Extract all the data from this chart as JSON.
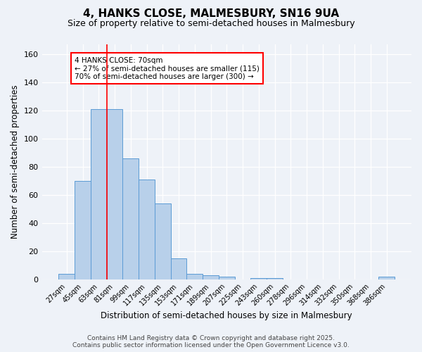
{
  "title": "4, HANKS CLOSE, MALMESBURY, SN16 9UA",
  "subtitle": "Size of property relative to semi-detached houses in Malmesbury",
  "xlabel": "Distribution of semi-detached houses by size in Malmesbury",
  "ylabel": "Number of semi-detached properties",
  "bin_labels": [
    "27sqm",
    "45sqm",
    "63sqm",
    "81sqm",
    "99sqm",
    "117sqm",
    "135sqm",
    "153sqm",
    "171sqm",
    "189sqm",
    "207sqm",
    "225sqm",
    "243sqm",
    "260sqm",
    "278sqm",
    "296sqm",
    "314sqm",
    "332sqm",
    "350sqm",
    "368sqm",
    "386sqm"
  ],
  "values": [
    4,
    70,
    121,
    121,
    86,
    71,
    54,
    15,
    4,
    3,
    2,
    0,
    1,
    1,
    0,
    0,
    0,
    0,
    0,
    0,
    2
  ],
  "bar_color": "#b8d0ea",
  "bar_edge_color": "#5b9bd5",
  "red_line_bin_index": 2,
  "annotation_line1": "4 HANKS CLOSE: 70sqm",
  "annotation_line2": "← 27% of semi-detached houses are smaller (115)",
  "annotation_line3": "70% of semi-detached houses are larger (300) →",
  "annotation_box_color": "white",
  "annotation_box_edge_color": "red",
  "ylim": [
    0,
    167
  ],
  "yticks": [
    0,
    20,
    40,
    60,
    80,
    100,
    120,
    140,
    160
  ],
  "footer_line1": "Contains HM Land Registry data © Crown copyright and database right 2025.",
  "footer_line2": "Contains public sector information licensed under the Open Government Licence v3.0.",
  "background_color": "#eef2f8",
  "grid_color": "white",
  "title_fontsize": 11,
  "subtitle_fontsize": 9,
  "axis_label_fontsize": 8.5,
  "tick_label_fontsize": 7,
  "footer_fontsize": 6.5,
  "annotation_fontsize": 7.5
}
